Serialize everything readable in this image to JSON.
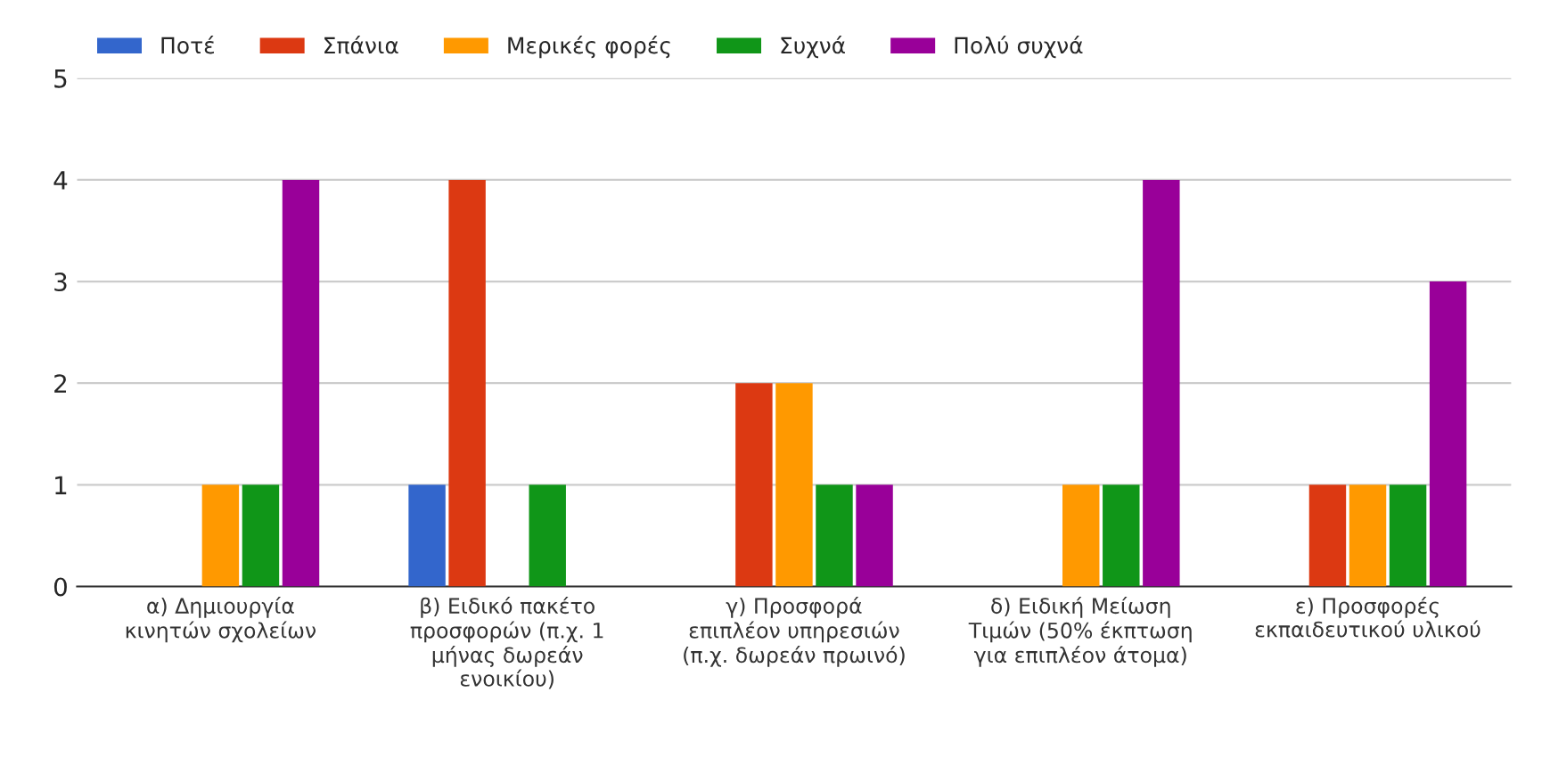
{
  "chart_data": {
    "type": "bar",
    "categories": [
      "α) Δημιουργία κινητών σχολείων",
      "β) Ειδικό πακέτο προσφορών (π.χ. 1 μήνας δωρεάν ενοικίου)",
      "γ) Προσφορά επιπλέον υπηρεσιών (π.χ. δωρεάν πρωινό)",
      "δ) Ειδική Μείωση Τιμών (50% έκπτωση για επιπλέον άτομα)",
      "ε) Προσφορές εκπαιδευτικού υλικού"
    ],
    "series": [
      {
        "name": "Ποτέ",
        "color": "#3366cc",
        "values": [
          0,
          1,
          0,
          0,
          0
        ]
      },
      {
        "name": "Σπάνια",
        "color": "#dc3912",
        "values": [
          0,
          4,
          2,
          0,
          1
        ]
      },
      {
        "name": "Μερικές φορές",
        "color": "#ff9900",
        "values": [
          1,
          0,
          2,
          1,
          1
        ]
      },
      {
        "name": "Συχνά",
        "color": "#109618",
        "values": [
          1,
          1,
          1,
          1,
          1
        ]
      },
      {
        "name": "Πολύ συχνά",
        "color": "#990099",
        "values": [
          4,
          0,
          1,
          4,
          3
        ]
      }
    ],
    "ylim": [
      0,
      5
    ],
    "yticks": [
      0,
      1,
      2,
      3,
      4,
      5
    ],
    "grid": "y",
    "legend": "top"
  }
}
